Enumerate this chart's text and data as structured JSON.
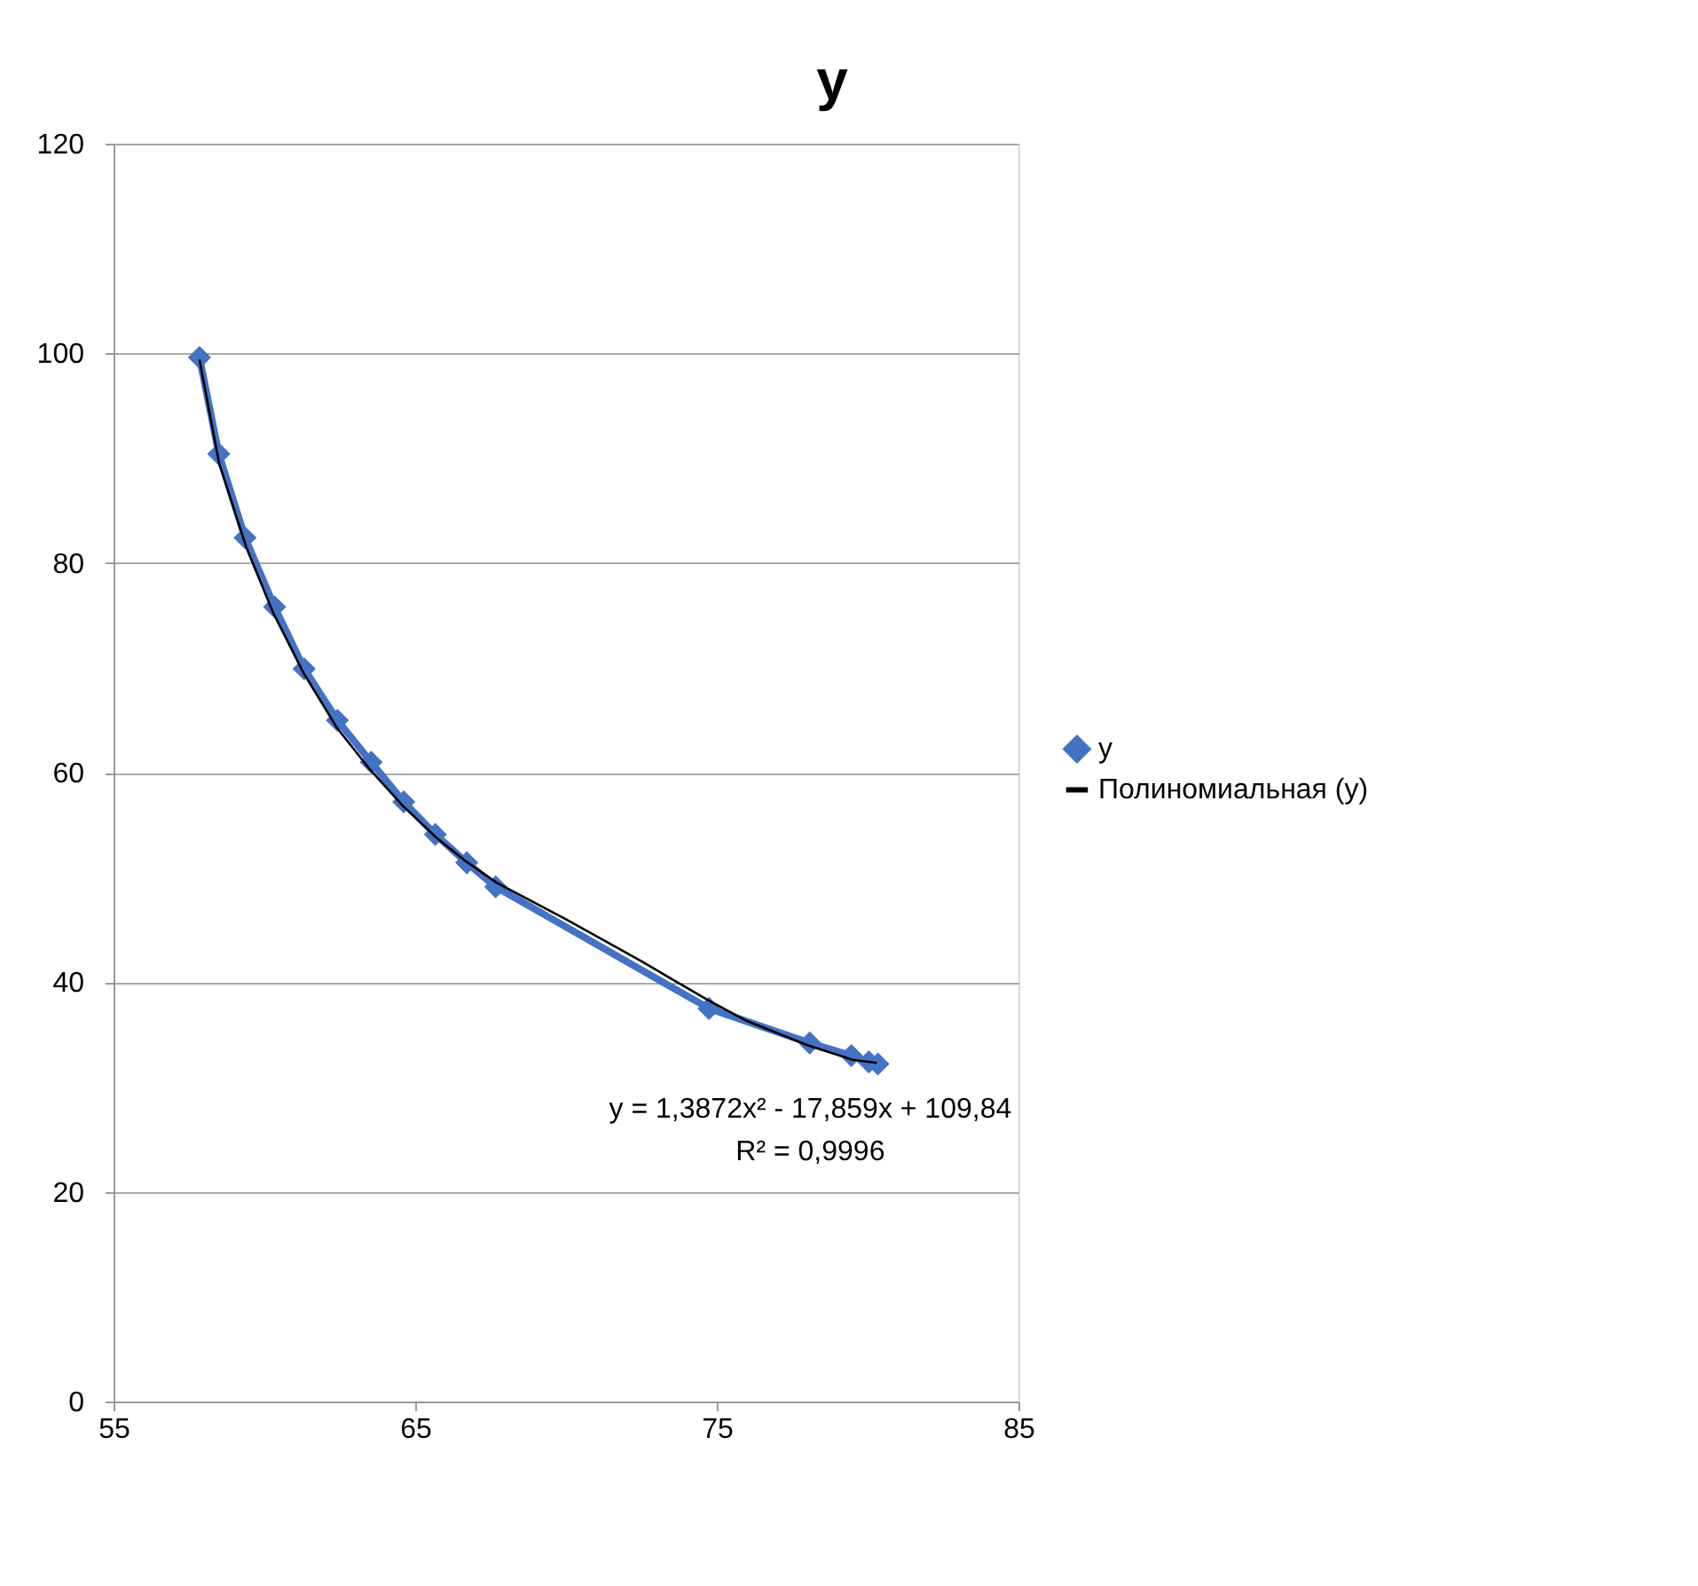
{
  "chart_data": {
    "type": "line",
    "title": "y",
    "series": [
      {
        "name": "y",
        "color": "#4472c4",
        "marker": "diamond",
        "line_style": "solid",
        "x": [
          57.85,
          58.49,
          59.36,
          60.34,
          61.32,
          62.42,
          63.54,
          64.62,
          65.67,
          66.71,
          67.67,
          74.74,
          78.08,
          79.46,
          80.04,
          80.34
        ],
        "values": [
          99.6,
          90.4,
          82.4,
          75.8,
          69.9,
          65.0,
          61.0,
          57.2,
          54.1,
          51.4,
          49.1,
          37.5,
          34.2,
          33.0,
          32.4,
          32.2
        ]
      },
      {
        "name": "Полиномиальная (y)",
        "color": "#000000",
        "marker": "none",
        "line_style": "solid",
        "x": [
          57.85,
          58.5,
          59.4,
          60.3,
          61.3,
          62.4,
          63.5,
          64.6,
          65.7,
          66.7,
          67.7,
          70,
          72.5,
          74.7,
          76,
          78,
          79.5,
          80.3
        ],
        "values": [
          99.4,
          89.5,
          81.5,
          75.2,
          69.5,
          64.3,
          60.3,
          56.8,
          53.8,
          51.5,
          49.5,
          46,
          42,
          38.3,
          36.3,
          34.0,
          32.6,
          32.3
        ]
      }
    ],
    "xlim": [
      55,
      85
    ],
    "xticks": [
      55,
      65,
      75,
      85
    ],
    "ylim": [
      0,
      120
    ],
    "yticks": [
      0,
      20,
      40,
      60,
      80,
      100,
      120
    ],
    "grid": "y",
    "legend": "right",
    "annotations": [
      "y = 1,3872x² - 17,859x + 109,84",
      "R² = 0,9996"
    ]
  }
}
